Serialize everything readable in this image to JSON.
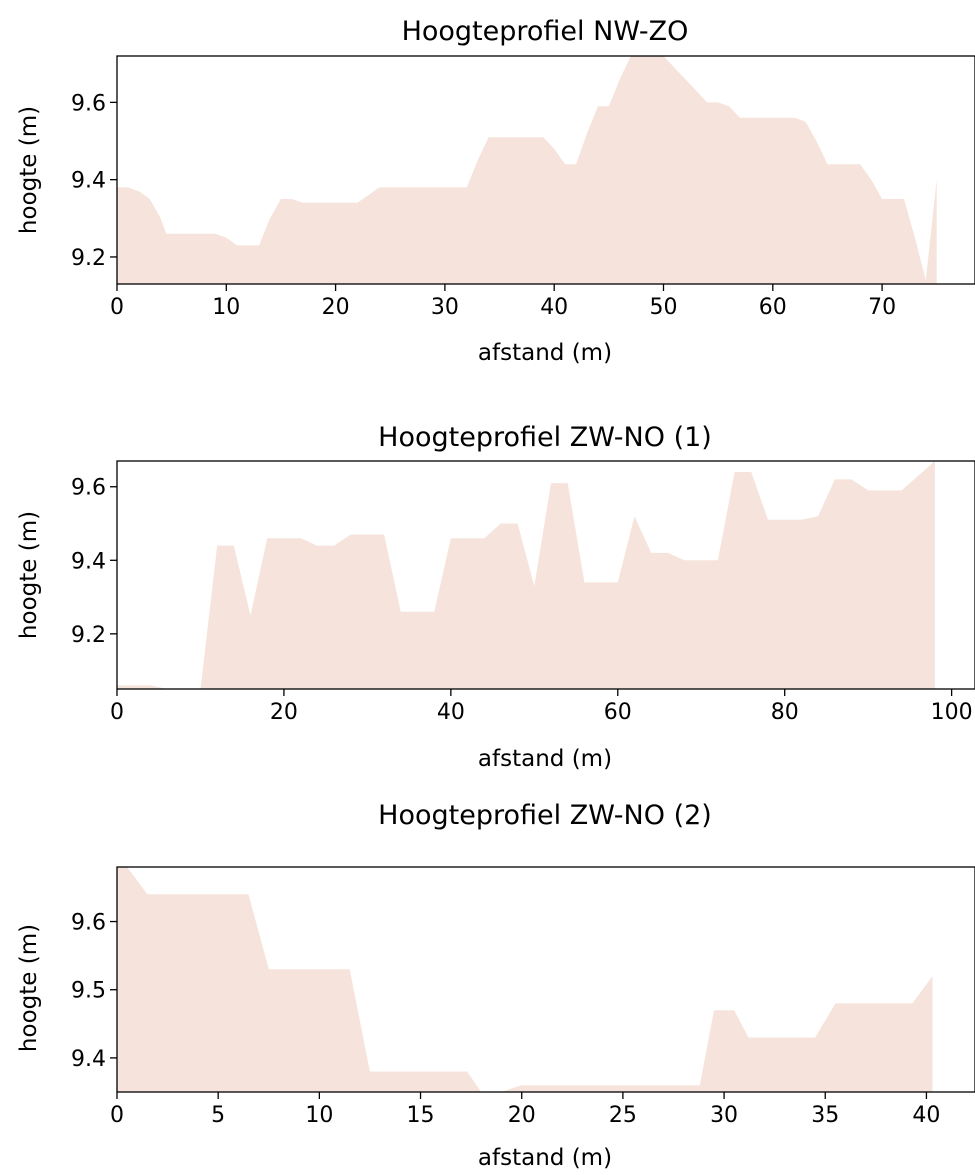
{
  "colors": {
    "area_fill": "#f6e4dc",
    "axes": "#000000"
  },
  "chart_data": [
    {
      "type": "area",
      "title": "Hoogteprofiel NW-ZO",
      "xlabel": "afstand (m)",
      "ylabel": "hoogte (m)",
      "xlim": [
        0,
        78.5
      ],
      "ylim": [
        9.13,
        9.72
      ],
      "baseline": 9.13,
      "xticks": [
        0,
        10,
        20,
        30,
        40,
        50,
        60,
        70
      ],
      "xtick_labels": [
        "0",
        "10",
        "20",
        "30",
        "40",
        "50",
        "60",
        "70"
      ],
      "yticks": [
        9.2,
        9.4,
        9.6
      ],
      "ytick_labels": [
        "9.2",
        "9.4",
        "9.6"
      ],
      "grid": false,
      "x": [
        0,
        1,
        2,
        3,
        4,
        4.5,
        6,
        8,
        9,
        10,
        11,
        12,
        13,
        14,
        15,
        16,
        17,
        18,
        19,
        20,
        21,
        22,
        23,
        24,
        25,
        26,
        27,
        28,
        29,
        30,
        31,
        32,
        33,
        34,
        35,
        36,
        37,
        38,
        39,
        40,
        41,
        42,
        43,
        44,
        45,
        46,
        47,
        48,
        49,
        50,
        51,
        52,
        53,
        54,
        55,
        56,
        57,
        58,
        59,
        60,
        61,
        62,
        63,
        64,
        65,
        66,
        67,
        68,
        69,
        70,
        71,
        72,
        73,
        74,
        75
      ],
      "y": [
        9.38,
        9.38,
        9.37,
        9.35,
        9.3,
        9.26,
        9.26,
        9.26,
        9.26,
        9.25,
        9.23,
        9.23,
        9.23,
        9.3,
        9.35,
        9.35,
        9.34,
        9.34,
        9.34,
        9.34,
        9.34,
        9.34,
        9.36,
        9.38,
        9.38,
        9.38,
        9.38,
        9.38,
        9.38,
        9.38,
        9.38,
        9.38,
        9.45,
        9.51,
        9.51,
        9.51,
        9.51,
        9.51,
        9.51,
        9.48,
        9.44,
        9.44,
        9.52,
        9.59,
        9.59,
        9.66,
        9.72,
        9.72,
        9.72,
        9.72,
        9.69,
        9.66,
        9.63,
        9.6,
        9.6,
        9.59,
        9.56,
        9.56,
        9.56,
        9.56,
        9.56,
        9.56,
        9.55,
        9.5,
        9.44,
        9.44,
        9.44,
        9.44,
        9.4,
        9.35,
        9.35,
        9.35,
        9.25,
        9.14,
        9.4
      ]
    },
    {
      "type": "area",
      "title": "Hoogteprofiel ZW-NO (1)",
      "xlabel": "afstand (m)",
      "ylabel": "hoogte (m)",
      "xlim": [
        0,
        102.8
      ],
      "ylim": [
        9.05,
        9.67
      ],
      "baseline": 9.05,
      "xticks": [
        0,
        20,
        40,
        60,
        80,
        100
      ],
      "xtick_labels": [
        "0",
        "20",
        "40",
        "60",
        "80",
        "100"
      ],
      "yticks": [
        9.2,
        9.4,
        9.6
      ],
      "ytick_labels": [
        "9.2",
        "9.4",
        "9.6"
      ],
      "grid": false,
      "x": [
        0,
        2,
        4,
        6,
        8,
        10,
        12,
        14,
        16,
        18,
        20,
        22,
        24,
        26,
        28,
        30,
        32,
        34,
        36,
        38,
        40,
        42,
        44,
        46,
        48,
        50,
        52,
        54,
        56,
        58,
        60,
        62,
        64,
        66,
        68,
        70,
        72,
        74,
        76,
        78,
        80,
        82,
        84,
        86,
        88,
        90,
        92,
        94,
        96,
        98
      ],
      "y": [
        9.06,
        9.06,
        9.06,
        9.05,
        9.05,
        9.05,
        9.44,
        9.44,
        9.25,
        9.46,
        9.46,
        9.46,
        9.44,
        9.44,
        9.47,
        9.47,
        9.47,
        9.26,
        9.26,
        9.26,
        9.46,
        9.46,
        9.46,
        9.5,
        9.5,
        9.33,
        9.61,
        9.61,
        9.34,
        9.34,
        9.34,
        9.52,
        9.42,
        9.42,
        9.4,
        9.4,
        9.4,
        9.64,
        9.64,
        9.51,
        9.51,
        9.51,
        9.52,
        9.62,
        9.62,
        9.59,
        9.59,
        9.59,
        9.63,
        9.67
      ]
    },
    {
      "type": "area",
      "title": "Hoogteprofiel ZW-NO (2)",
      "xlabel": "afstand (m)",
      "ylabel": "hoogte (m)",
      "xlim": [
        0,
        42.4
      ],
      "ylim": [
        9.35,
        9.68
      ],
      "baseline": 9.35,
      "xticks": [
        0,
        5,
        10,
        15,
        20,
        25,
        30,
        35,
        40
      ],
      "xtick_labels": [
        "0",
        "5",
        "10",
        "15",
        "20",
        "25",
        "30",
        "35",
        "40"
      ],
      "yticks": [
        9.4,
        9.5,
        9.6
      ],
      "ytick_labels": [
        "9.4",
        "9.5",
        "9.6"
      ],
      "grid": false,
      "x": [
        0,
        0.5,
        1.5,
        2.5,
        4,
        6,
        6.5,
        7.5,
        9,
        11,
        11.5,
        12.5,
        14,
        16,
        17.3,
        18,
        19,
        20,
        22,
        24,
        26,
        28,
        28.8,
        29.5,
        30.5,
        31.2,
        32.5,
        33.5,
        34.5,
        35.5,
        36.5,
        37.5,
        38.5,
        39.3,
        40.3
      ],
      "y": [
        9.68,
        9.68,
        9.64,
        9.64,
        9.64,
        9.64,
        9.64,
        9.53,
        9.53,
        9.53,
        9.53,
        9.38,
        9.38,
        9.38,
        9.38,
        9.35,
        9.35,
        9.36,
        9.36,
        9.36,
        9.36,
        9.36,
        9.36,
        9.47,
        9.47,
        9.43,
        9.43,
        9.43,
        9.43,
        9.48,
        9.48,
        9.48,
        9.48,
        9.48,
        9.52
      ]
    }
  ]
}
